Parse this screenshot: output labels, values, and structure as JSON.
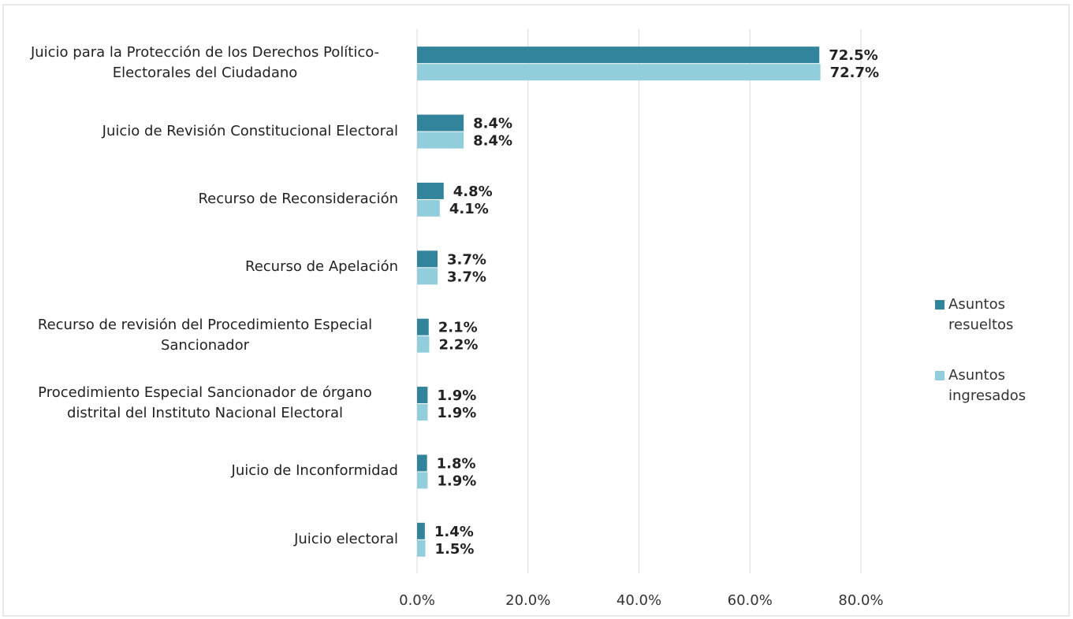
{
  "chart_data": {
    "type": "bar",
    "orientation": "horizontal",
    "categories": [
      "Juicio para la Protección de los Derechos Político-Electorales del Ciudadano",
      "Juicio de Revisión Constitucional Electoral",
      "Recurso de Reconsideración",
      "Recurso de Apelación",
      "Recurso de revisión del Procedimiento Especial Sancionador",
      "Procedimiento Especial Sancionador de órgano distrital del Instituto Nacional Electoral",
      "Juicio de Inconformidad",
      "Juicio electoral"
    ],
    "series": [
      {
        "name": "Asuntos resueltos",
        "color": "#31849b",
        "values": [
          72.5,
          8.4,
          4.8,
          3.7,
          2.1,
          1.9,
          1.8,
          1.4
        ],
        "value_labels": [
          "72.5%",
          "8.4%",
          "4.8%",
          "3.7%",
          "2.1%",
          "1.9%",
          "1.8%",
          "1.4%"
        ]
      },
      {
        "name": "Asuntos ingresados",
        "color": "#92cddc",
        "values": [
          72.7,
          8.4,
          4.1,
          3.7,
          2.2,
          1.9,
          1.9,
          1.5
        ],
        "value_labels": [
          "72.7%",
          "8.4%",
          "4.1%",
          "3.7%",
          "2.2%",
          "1.9%",
          "1.9%",
          "1.5%"
        ]
      }
    ],
    "xlim": [
      0,
      80
    ],
    "xticks": [
      {
        "value": 0,
        "label": "0.0%"
      },
      {
        "value": 20,
        "label": "20.0%"
      },
      {
        "value": 40,
        "label": "40.0%"
      },
      {
        "value": 60,
        "label": "60.0%"
      },
      {
        "value": 80,
        "label": "80.0%"
      }
    ],
    "grid": true,
    "legend": "right"
  }
}
